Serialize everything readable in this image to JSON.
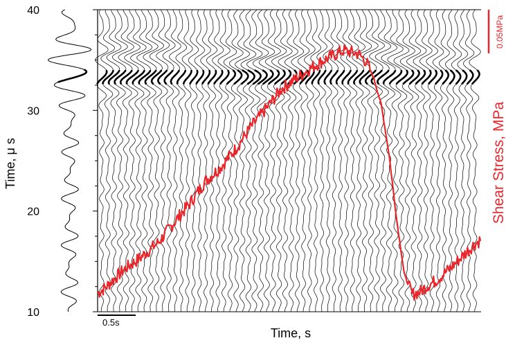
{
  "chart_data": {
    "type": "line",
    "xlabel": "Time, s",
    "ylabel_left": "Time, μ s",
    "ylabel_right": "Shear Stress, MPa",
    "yticks": [
      "10",
      "20",
      "30",
      "40"
    ],
    "ytick_values": [
      10,
      20,
      30,
      40
    ],
    "ylim": [
      10,
      40
    ],
    "time_scalebar_label": "0.5s",
    "stress_scalebar_label": "0.05MPa",
    "colors": {
      "waveform": "#000000",
      "stress": "#e8262b",
      "scalebar_stress": "#e8262b"
    },
    "waveform_trace_count": 62,
    "waveform_highlight_time_us": 33.3,
    "series": [
      {
        "name": "Shear Stress, MPa",
        "x": [
          0.0,
          0.1,
          0.2,
          0.35,
          0.55,
          0.8,
          1.0,
          1.2,
          1.4,
          1.6,
          1.8,
          2.0,
          2.2,
          2.4,
          2.6,
          2.8,
          3.0,
          3.2,
          3.4,
          3.5,
          3.6,
          3.7,
          3.8,
          3.9,
          4.0,
          4.1,
          4.2,
          4.3,
          4.4,
          4.5,
          4.6,
          4.7,
          4.8,
          4.9,
          5.0
        ],
        "y": [
          0.003,
          0.008,
          0.015,
          0.025,
          0.035,
          0.05,
          0.068,
          0.085,
          0.105,
          0.118,
          0.135,
          0.155,
          0.172,
          0.19,
          0.2,
          0.21,
          0.218,
          0.225,
          0.222,
          0.215,
          0.2,
          0.175,
          0.13,
          0.07,
          0.02,
          0.002,
          0.004,
          0.01,
          0.014,
          0.02,
          0.026,
          0.033,
          0.04,
          0.047,
          0.052
        ]
      }
    ]
  }
}
